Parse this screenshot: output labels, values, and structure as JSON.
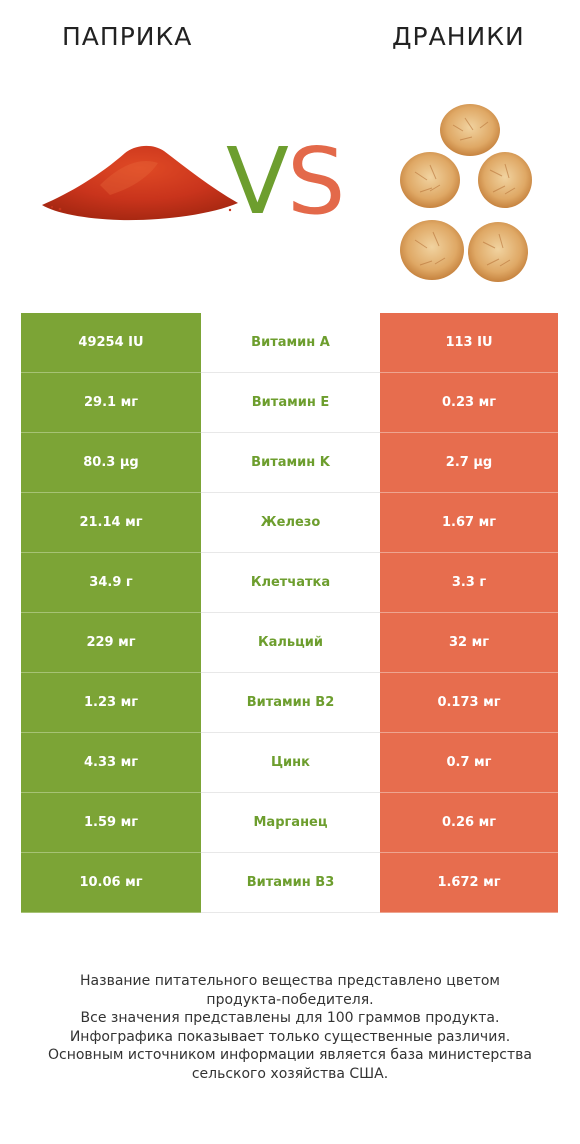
{
  "header": {
    "left_title": "ПАПРИКА",
    "right_title": "ДРАНИКИ",
    "vs_v": "V",
    "vs_s": "S"
  },
  "colors": {
    "winner_left": "#7ca436",
    "winner_right": "#e76d4e",
    "vs_v": "#6d9e2e",
    "vs_s": "#e3694a"
  },
  "rows": [
    {
      "left": "49254 IU",
      "name": "Витамин A",
      "right": "113 IU"
    },
    {
      "left": "29.1 мг",
      "name": "Витамин E",
      "right": "0.23 мг"
    },
    {
      "left": "80.3 µg",
      "name": "Витамин K",
      "right": "2.7 µg"
    },
    {
      "left": "21.14 мг",
      "name": "Железо",
      "right": "1.67 мг"
    },
    {
      "left": "34.9 г",
      "name": "Клетчатка",
      "right": "3.3 г"
    },
    {
      "left": "229 мг",
      "name": "Кальций",
      "right": "32 мг"
    },
    {
      "left": "1.23 мг",
      "name": "Витамин B2",
      "right": "0.173 мг"
    },
    {
      "left": "4.33 мг",
      "name": "Цинк",
      "right": "0.7 мг"
    },
    {
      "left": "1.59 мг",
      "name": "Марганец",
      "right": "0.26 мг"
    },
    {
      "left": "10.06 мг",
      "name": "Витамин B3",
      "right": "1.672 мг"
    }
  ],
  "footer": {
    "lines": [
      "Название питательного вещества представлено цветом",
      "продукта-победителя.",
      "Все значения представлены для 100 граммов продукта.",
      "Инфографика показывает только существенные различия.",
      "Основным источником информации является база министерства",
      "сельского хозяйства США."
    ]
  }
}
